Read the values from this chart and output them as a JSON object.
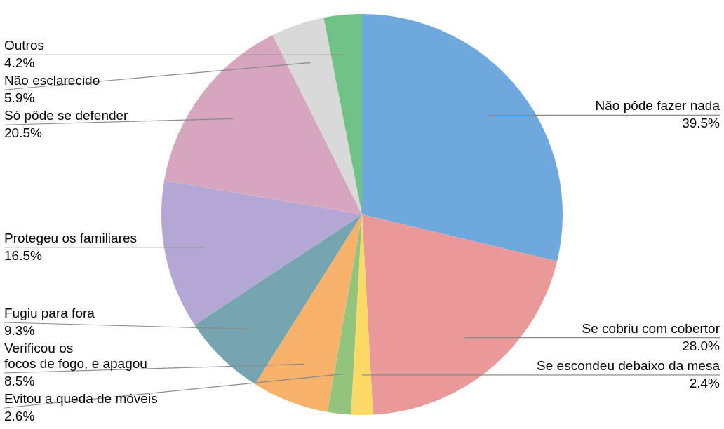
{
  "chart_data": {
    "type": "pie",
    "categories": [
      "Não pôde fazer nada",
      "Se cobriu com cobertor",
      "Se escondeu debaixo da mesa",
      "Evitou a queda de móveis",
      "Verificou os\nfocos de fogo, e apagou",
      "Fugiu para fora",
      "Protegeu os familiares",
      "Só pôde se defender",
      "Não esclarecido",
      "Outros"
    ],
    "values": [
      39.5,
      28.0,
      2.4,
      2.6,
      8.5,
      9.3,
      16.5,
      20.5,
      5.9,
      4.2
    ],
    "value_labels": [
      "39.5%",
      "28.0%",
      "2.4%",
      "2.6%",
      "8.5%",
      "9.3%",
      "16.5%",
      "20.5%",
      "5.9%",
      "4.2%"
    ],
    "colors": [
      "#6fa8dc",
      "#ea9999",
      "#ffd966",
      "#93c47d",
      "#f6b26b",
      "#76a5af",
      "#b4a7d6",
      "#d5a6bd",
      "#d9d9d9",
      "#71c287"
    ]
  }
}
